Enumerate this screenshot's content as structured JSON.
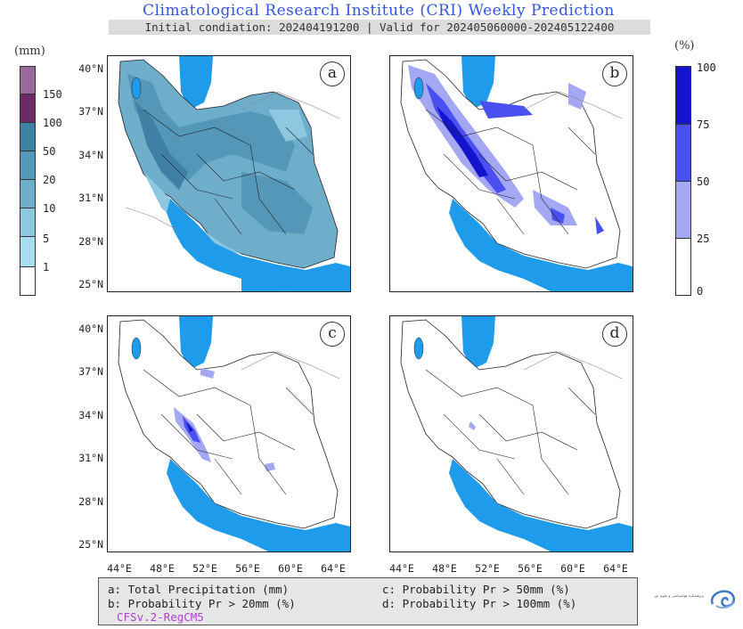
{
  "title": "Climatological Research Institute (CRI) Weekly Prediction",
  "subtitle": "Initial condiation: 202404191200 | Valid for 202405060000-202405122400",
  "panels": [
    {
      "letter": "a"
    },
    {
      "letter": "b"
    },
    {
      "letter": "c"
    },
    {
      "letter": "d"
    }
  ],
  "lat_labels": [
    "40°N",
    "37°N",
    "34°N",
    "31°N",
    "28°N",
    "25°N"
  ],
  "lon_labels": [
    "44°E",
    "48°E",
    "52°E",
    "56°E",
    "60°E",
    "64°E"
  ],
  "colorbar_left": {
    "unit": "(mm)",
    "levels": [
      "150",
      "100",
      "50",
      "20",
      "10",
      "5",
      "1"
    ],
    "colors": [
      "#ffffff",
      "#a8dcf0",
      "#8ec8e0",
      "#6eaecb",
      "#5497b8",
      "#3f80a4",
      "#6c2b64",
      "#9a6a9a"
    ]
  },
  "colorbar_right": {
    "unit": "(%)",
    "levels": [
      "100",
      "75",
      "50",
      "25",
      "0"
    ],
    "colors": [
      "#ffffff",
      "#a4a8f4",
      "#4a50f0",
      "#1414cc"
    ]
  },
  "legend": {
    "a": "a: Total Precipitation (mm)",
    "b": "b: Probability Pr > 20mm (%)",
    "c": "c: Probability Pr > 50mm (%)",
    "d": "d: Probability Pr > 100mm (%)",
    "model": "CFSv.2-RegCM5"
  },
  "logo_text": "پژوهشکده هواشناسی و علوم جو",
  "colors": {
    "sea": "#1e9bea",
    "title": "#3355dd"
  }
}
